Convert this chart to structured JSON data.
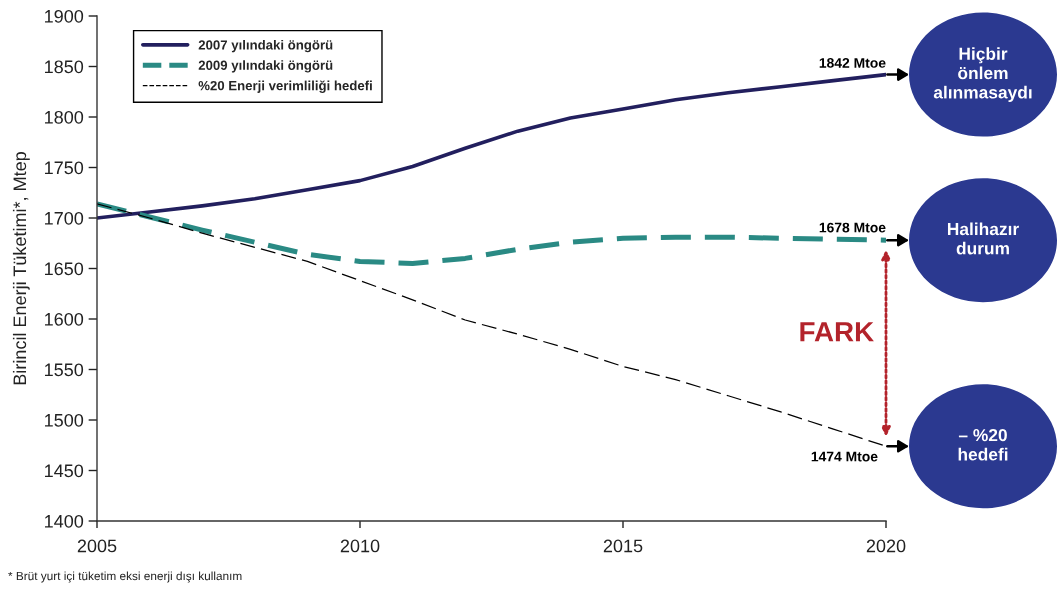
{
  "chart_data": {
    "type": "line",
    "ylabel": "Birincil Enerji Tüketimi*, Mtep",
    "x": [
      2005,
      2006,
      2007,
      2008,
      2009,
      2010,
      2011,
      2012,
      2013,
      2014,
      2015,
      2016,
      2017,
      2018,
      2019,
      2020
    ],
    "series": [
      {
        "name": "2007 yılındaki öngörü",
        "color": "#221f5e",
        "line_style": "solid",
        "values": [
          1700,
          1706,
          1712,
          1719,
          1728,
          1737,
          1751,
          1769,
          1786,
          1799,
          1808,
          1817,
          1824,
          1830,
          1836,
          1842
        ],
        "value_labels": [
          null,
          null,
          null,
          null,
          null,
          null,
          null,
          null,
          null,
          null,
          null,
          null,
          null,
          null,
          null,
          "1842 Mtoe"
        ]
      },
      {
        "name": "2009 yılındaki öngörü",
        "color": "#2a8a84",
        "line_style": "dashed",
        "values": [
          1714,
          1701,
          1688,
          1676,
          1664,
          1657,
          1655,
          1660,
          1669,
          1676,
          1680,
          1681,
          1681,
          1680,
          1679,
          1678
        ],
        "value_labels": [
          null,
          null,
          null,
          null,
          null,
          null,
          null,
          null,
          null,
          null,
          null,
          null,
          null,
          null,
          null,
          "1678 Mtoe"
        ]
      },
      {
        "name": "%20 Enerji verimliliği hedefi",
        "color": "#000000",
        "line_style": "dashed",
        "values": [
          1714,
          1700,
          1685,
          1671,
          1657,
          1638,
          1619,
          1599,
          1585,
          1570,
          1553,
          1540,
          1524,
          1508,
          1491,
          1474
        ],
        "value_labels": [
          null,
          null,
          null,
          null,
          null,
          null,
          null,
          null,
          null,
          null,
          null,
          null,
          null,
          null,
          null,
          "1474 Mtoe"
        ]
      }
    ],
    "xlim": [
      2005,
      2020
    ],
    "xticks": [
      2005,
      2010,
      2015,
      2020
    ],
    "ylim": [
      1400,
      1900
    ],
    "yticks": [
      1400,
      1450,
      1500,
      1550,
      1600,
      1650,
      1700,
      1750,
      1800,
      1850,
      1900
    ],
    "legend": "top left",
    "annotations": [
      "Hiçbir\nönlem\nalınmasaydı",
      "Halihazır\ndurum",
      "– %20\nhedefi",
      "FARK",
      "* Brüt yurt içi tüketim eksi enerji dışı kullanım"
    ]
  }
}
